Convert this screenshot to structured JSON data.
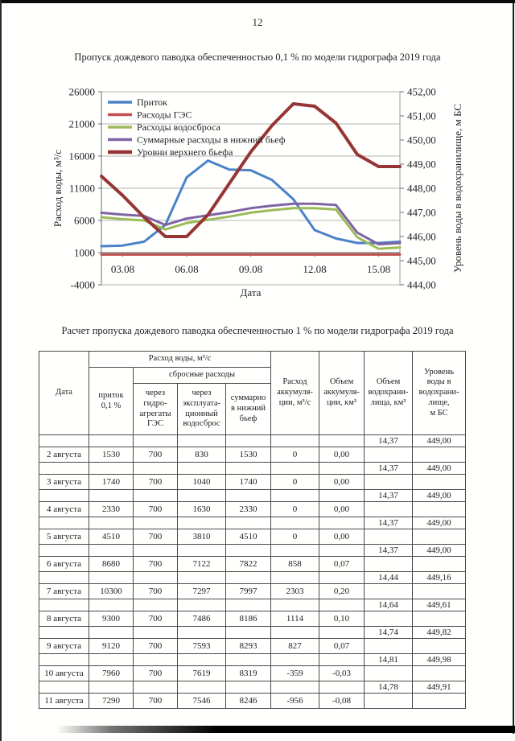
{
  "page": {
    "number": "12"
  },
  "chart": {
    "title": "Пропуск дождевого паводка обеспеченностью 0,1 % по модели гидрографа 2019 года"
  },
  "chart_data": {
    "type": "line",
    "title": "Пропуск дождевого паводка обеспеченностью 0,1 % по модели гидрографа 2019 года",
    "xlabel": "Дата",
    "ylabel_left": "Расход воды, м³/с",
    "ylabel_right": "Уровень воды в водохранилище, м БС",
    "ylim_left": [
      -4000,
      26000
    ],
    "ylim_right": [
      444,
      452
    ],
    "yticks_left": [
      "26000",
      "21000",
      "16000",
      "11000",
      "6000",
      "1000",
      "-4000"
    ],
    "yticks_right": [
      "452,00",
      "451,00",
      "450,00",
      "449,00",
      "448,00",
      "447,00",
      "446,00",
      "445,00",
      "444,00"
    ],
    "x": [
      "02.08",
      "03.08",
      "04.08",
      "05.08",
      "06.08",
      "07.08",
      "08.08",
      "09.08",
      "10.08",
      "11.08",
      "12.08",
      "13.08",
      "14.08",
      "15.08",
      "16.08"
    ],
    "xtick_labels": [
      "03.08",
      "06.08",
      "09.08",
      "12.08",
      "15.08"
    ],
    "x_axis_cross_value": 1000,
    "grid": "horizontal",
    "legend_position": "top-left-inside",
    "series": [
      {
        "name": "Приток",
        "axis": "left",
        "color": "#4a82c8",
        "width": 3,
        "values": [
          2000,
          2100,
          2700,
          5300,
          12700,
          15300,
          13900,
          13800,
          12300,
          9300,
          4500,
          3200,
          2500,
          2500,
          2700
        ]
      },
      {
        "name": "Расходы ГЭС",
        "axis": "left",
        "color": "#c0504d",
        "width": 3,
        "values": [
          700,
          700,
          700,
          700,
          700,
          700,
          700,
          700,
          700,
          700,
          700,
          700,
          700,
          700,
          700
        ]
      },
      {
        "name": "Расходы водосброса",
        "axis": "left",
        "color": "#9bbb59",
        "width": 3,
        "values": [
          6500,
          6200,
          6000,
          4600,
          5600,
          6100,
          6600,
          7200,
          7600,
          7900,
          7900,
          7700,
          3400,
          1600,
          1800
        ]
      },
      {
        "name": "Суммарные расходы в нижний бьеф",
        "axis": "left",
        "color": "#8064a2",
        "width": 3,
        "values": [
          7200,
          6900,
          6700,
          5300,
          6300,
          6800,
          7300,
          7900,
          8300,
          8600,
          8600,
          8400,
          4100,
          2300,
          2500
        ]
      },
      {
        "name": "Уровни верхнего бьефа",
        "axis": "right",
        "color": "#963634",
        "width": 4,
        "values": [
          448.5,
          447.7,
          446.8,
          446.0,
          446.0,
          446.9,
          448.2,
          449.5,
          450.6,
          451.5,
          451.4,
          450.7,
          449.4,
          448.9,
          448.9
        ]
      }
    ]
  },
  "table": {
    "title": "Расчет пропуска дождевого паводка обеспеченностью 1 % по модели гидрографа 2019 года",
    "header": {
      "date": "Дата",
      "flow_group": "Расход воды, м³/с",
      "inflow": "приток\n0,1 %",
      "release_group": "сбросные расходы",
      "turbines": "через\nгидро-\nагрегаты\nГЭС",
      "spillway": "через\nэксплуата-\nционный\nводосброс",
      "total_downstream": "суммарно\nв нижний\nбьеф",
      "accum_flow": "Расход\nаккумуля-\nции, м³/с",
      "accum_volume": "Объем\nаккумуля-\nции, км³",
      "reservoir_volume": "Объем\nводохрани-\nлища, км³",
      "water_level": "Уровень\nводы в\nводохрани-\nлище,\nм БС"
    },
    "rows": [
      {
        "t": "level",
        "vol": "14,37",
        "lvl": "449,00"
      },
      {
        "t": "day",
        "date": "2 августа",
        "in": "1530",
        "ges": "700",
        "spill": "830",
        "sum": "1530",
        "qa": "0",
        "va": "0,00"
      },
      {
        "t": "level",
        "vol": "14,37",
        "lvl": "449,00"
      },
      {
        "t": "day",
        "date": "3 августа",
        "in": "1740",
        "ges": "700",
        "spill": "1040",
        "sum": "1740",
        "qa": "0",
        "va": "0,00"
      },
      {
        "t": "level",
        "vol": "14,37",
        "lvl": "449,00"
      },
      {
        "t": "day",
        "date": "4 августа",
        "in": "2330",
        "ges": "700",
        "spill": "1630",
        "sum": "2330",
        "qa": "0",
        "va": "0,00"
      },
      {
        "t": "level",
        "vol": "14,37",
        "lvl": "449,00"
      },
      {
        "t": "day",
        "date": "5 августа",
        "in": "4510",
        "ges": "700",
        "spill": "3810",
        "sum": "4510",
        "qa": "0",
        "va": "0,00"
      },
      {
        "t": "level",
        "vol": "14,37",
        "lvl": "449,00"
      },
      {
        "t": "day",
        "date": "6 августа",
        "in": "8680",
        "ges": "700",
        "spill": "7122",
        "sum": "7822",
        "qa": "858",
        "va": "0,07"
      },
      {
        "t": "level",
        "vol": "14,44",
        "lvl": "449,16"
      },
      {
        "t": "day",
        "date": "7 августа",
        "in": "10300",
        "ges": "700",
        "spill": "7297",
        "sum": "7997",
        "qa": "2303",
        "va": "0,20"
      },
      {
        "t": "level",
        "vol": "14,64",
        "lvl": "449,61"
      },
      {
        "t": "day",
        "date": "8 августа",
        "in": "9300",
        "ges": "700",
        "spill": "7486",
        "sum": "8186",
        "qa": "1114",
        "va": "0,10"
      },
      {
        "t": "level",
        "vol": "14,74",
        "lvl": "449,82"
      },
      {
        "t": "day",
        "date": "9 августа",
        "in": "9120",
        "ges": "700",
        "spill": "7593",
        "sum": "8293",
        "qa": "827",
        "va": "0,07"
      },
      {
        "t": "level",
        "vol": "14,81",
        "lvl": "449,98"
      },
      {
        "t": "day",
        "date": "10 августа",
        "in": "7960",
        "ges": "700",
        "spill": "7619",
        "sum": "8319",
        "qa": "-359",
        "va": "-0,03"
      },
      {
        "t": "level",
        "vol": "14,78",
        "lvl": "449,91"
      },
      {
        "t": "day",
        "date": "11 августа",
        "in": "7290",
        "ges": "700",
        "spill": "7546",
        "sum": "8246",
        "qa": "-956",
        "va": "-0,08"
      }
    ]
  }
}
